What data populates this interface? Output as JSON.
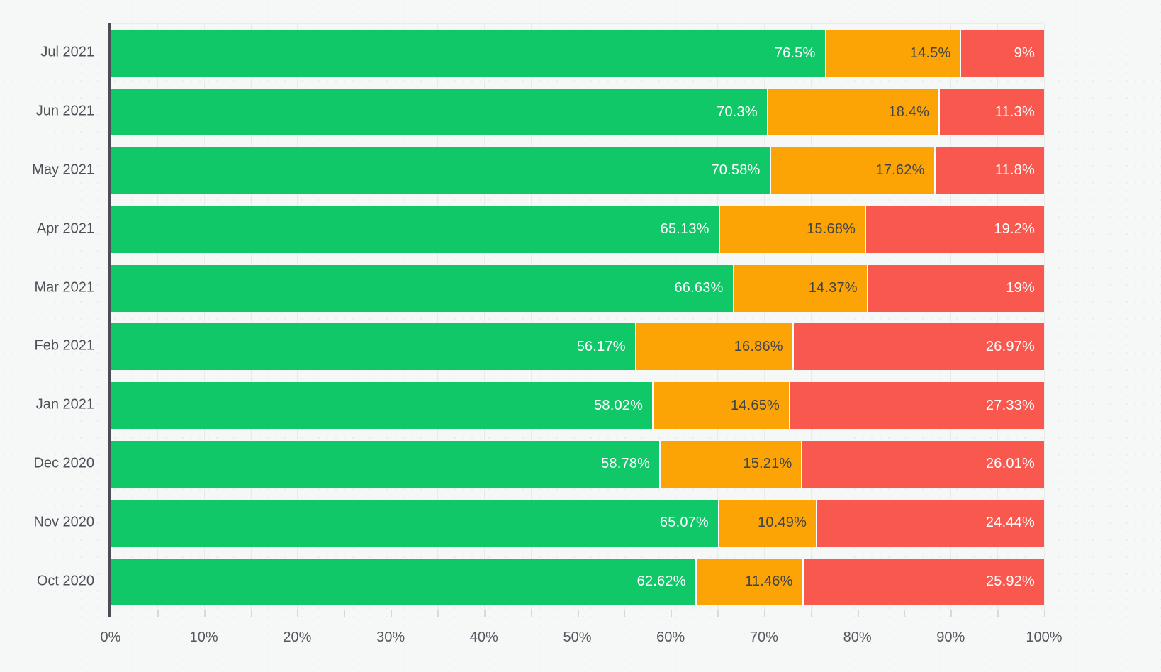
{
  "chart_data": {
    "type": "bar",
    "orientation": "horizontal-stacked",
    "title": "",
    "xlabel": "",
    "ylabel": "",
    "xlim": [
      0,
      100
    ],
    "grid": "vertical, every 5%",
    "legend": "none",
    "categories": [
      "Jul 2021",
      "Jun 2021",
      "May 2021",
      "Apr 2021",
      "Mar 2021",
      "Feb 2021",
      "Jan 2021",
      "Dec 2020",
      "Nov 2020",
      "Oct 2020"
    ],
    "series": [
      {
        "name": "green",
        "color": "#11c868",
        "label_color": "#ffffff",
        "values": [
          76.5,
          70.3,
          70.58,
          65.13,
          66.63,
          56.17,
          58.02,
          58.78,
          65.07,
          62.62
        ],
        "labels": [
          "76.5%",
          "70.3%",
          "70.58%",
          "65.13%",
          "66.63%",
          "56.17%",
          "58.02%",
          "58.78%",
          "65.07%",
          "62.62%"
        ]
      },
      {
        "name": "orange",
        "color": "#fca405",
        "label_color": "#3f444b",
        "values": [
          14.5,
          18.4,
          17.62,
          15.68,
          14.37,
          16.86,
          14.65,
          15.21,
          10.49,
          11.46
        ],
        "labels": [
          "14.5%",
          "18.4%",
          "17.62%",
          "15.68%",
          "14.37%",
          "16.86%",
          "14.65%",
          "15.21%",
          "10.49%",
          "11.46%"
        ]
      },
      {
        "name": "red",
        "color": "#f8584d",
        "label_color": "#ffffff",
        "values": [
          9,
          11.3,
          11.8,
          19.2,
          19,
          26.97,
          27.33,
          26.01,
          24.44,
          25.92
        ],
        "labels": [
          "9%",
          "11.3%",
          "11.8%",
          "19.2%",
          "19%",
          "26.97%",
          "27.33%",
          "26.01%",
          "24.44%",
          "25.92%"
        ]
      }
    ],
    "x_ticks": [
      "0%",
      "10%",
      "20%",
      "30%",
      "40%",
      "50%",
      "60%",
      "70%",
      "80%",
      "90%",
      "100%"
    ],
    "minor_tick_step_percent": 5,
    "colors": {
      "background": "#f6f7f7",
      "gridline": "#e9ebeb",
      "axis_line": "#4a4e54",
      "axis_text": "#54585f"
    }
  }
}
